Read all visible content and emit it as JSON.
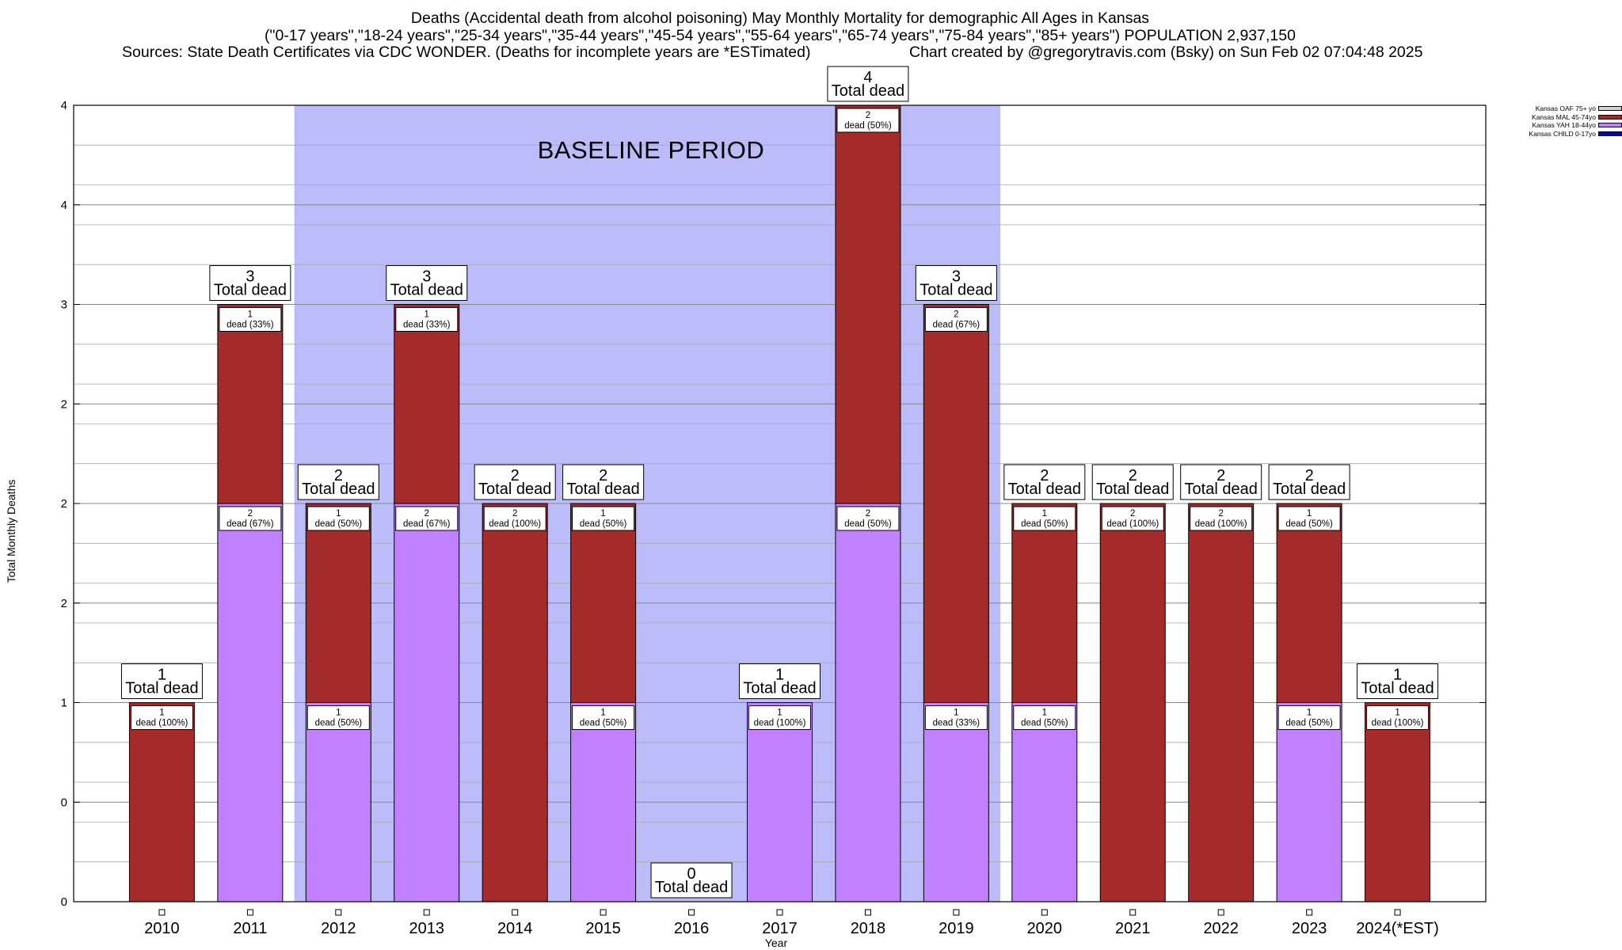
{
  "title": {
    "line1": "Deaths (Accidental death from alcohol poisoning) May Monthly Mortality for demographic All Ages in Kansas",
    "line2": "(\"0-17 years\",\"18-24 years\",\"25-34 years\",\"35-44 years\",\"45-54 years\",\"55-64 years\",\"65-74 years\",\"75-84 years\",\"85+ years\") POPULATION 2,937,150",
    "line3_left": "Sources: State Death Certificates via CDC WONDER. (Deaths for incomplete years are *ESTimated)",
    "line3_right": "Chart created by @gregorytravis.com (Bsky) on Sun Feb 02 07:04:48 2025"
  },
  "baseline_label": "BASELINE PERIOD",
  "colors": {
    "background_band": "#bcbcfa",
    "child": "#0000c8",
    "yah": "#c080ff",
    "mal": "#a52a2a",
    "oaf": "#d3d3d3"
  },
  "chart_data": {
    "type": "bar",
    "stacked": true,
    "xlabel": "Year",
    "ylabel": "Total Monthly Deaths",
    "ylim": [
      0,
      4
    ],
    "ytick_labels": [
      "0",
      "0",
      "1",
      "2",
      "2",
      "2",
      "3",
      "4",
      "4"
    ],
    "grid": true,
    "legend_position": "top-right",
    "baseline_period": [
      "2012",
      "2019"
    ],
    "categories": [
      "2010",
      "2011",
      "2012",
      "2013",
      "2014",
      "2015",
      "2016",
      "2017",
      "2018",
      "2019",
      "2020",
      "2021",
      "2022",
      "2023",
      "2024(*EST)"
    ],
    "series": [
      {
        "name": "Kansas OAF 75+ yo",
        "color": "#d3d3d3",
        "values": [
          0,
          0,
          0,
          0,
          0,
          0,
          0,
          0,
          0,
          0,
          0,
          0,
          0,
          0,
          0
        ]
      },
      {
        "name": "Kansas MAL 45-74yo",
        "color": "#a52a2a",
        "values": [
          1,
          1,
          1,
          1,
          2,
          1,
          0,
          0,
          2,
          2,
          1,
          2,
          2,
          1,
          1
        ]
      },
      {
        "name": "Kansas YAH 18-44yo",
        "color": "#c080ff",
        "values": [
          0,
          2,
          1,
          2,
          0,
          1,
          0,
          1,
          2,
          1,
          1,
          0,
          0,
          1,
          0
        ]
      },
      {
        "name": "Kansas CHILD 0-17yo",
        "color": "#0000c8",
        "values": [
          0,
          0,
          0,
          0,
          0,
          0,
          0,
          0,
          0,
          0,
          0,
          0,
          0,
          0,
          0
        ]
      }
    ],
    "totals": [
      1,
      3,
      2,
      3,
      2,
      2,
      0,
      1,
      4,
      3,
      2,
      2,
      2,
      2,
      1
    ],
    "total_label": "Total dead",
    "segment_labels": {
      "mal": [
        "1|dead (100%)",
        "1|dead (33%)",
        "1|dead (50%)",
        "1|dead (33%)",
        "2|dead (100%)",
        "1|dead (50%)",
        "",
        "",
        "2|dead (50%)",
        "2|dead (67%)",
        "1|dead (50%)",
        "2|dead (100%)",
        "2|dead (100%)",
        "1|dead (50%)",
        "1|dead (100%)"
      ],
      "yah": [
        "",
        "2|dead (67%)",
        "1|dead (50%)",
        "2|dead (67%)",
        "",
        "1|dead (50%)",
        "",
        "1|dead (100%)",
        "2|dead (50%)",
        "1|dead (33%)",
        "1|dead (50%)",
        "",
        "",
        "1|dead (50%)",
        ""
      ]
    }
  }
}
